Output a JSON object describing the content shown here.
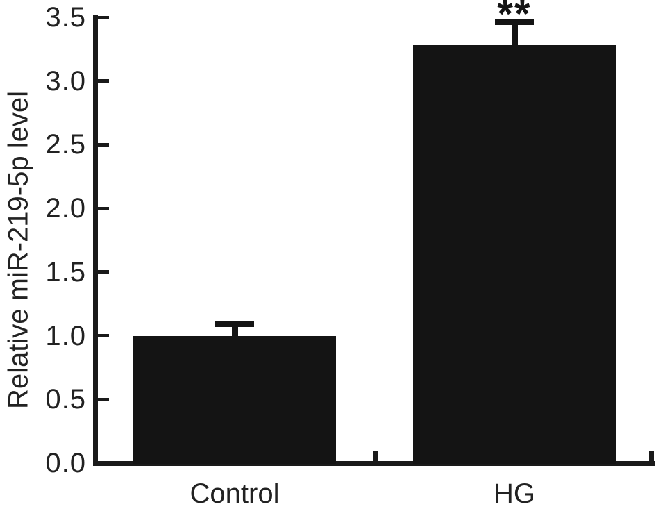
{
  "chart_data": {
    "type": "bar",
    "title": "",
    "xlabel": "",
    "ylabel": "Relative miR-219-5p level",
    "categories": [
      "Control",
      "HG"
    ],
    "values": [
      1.0,
      3.28
    ],
    "errors_plus": [
      0.09,
      0.18
    ],
    "significance": [
      "",
      "**"
    ],
    "ylim": [
      0,
      3.5
    ],
    "ytick_step": 0.5,
    "yticks": [
      "0.0",
      "0.5",
      "1.0",
      "1.5",
      "2.0",
      "2.5",
      "3.0",
      "3.5"
    ],
    "legend": "none",
    "grid": "off",
    "bar_color": "#141414",
    "axis_color": "#1a1a1a",
    "text_color": "#222222",
    "background_color": "#ffffff"
  }
}
